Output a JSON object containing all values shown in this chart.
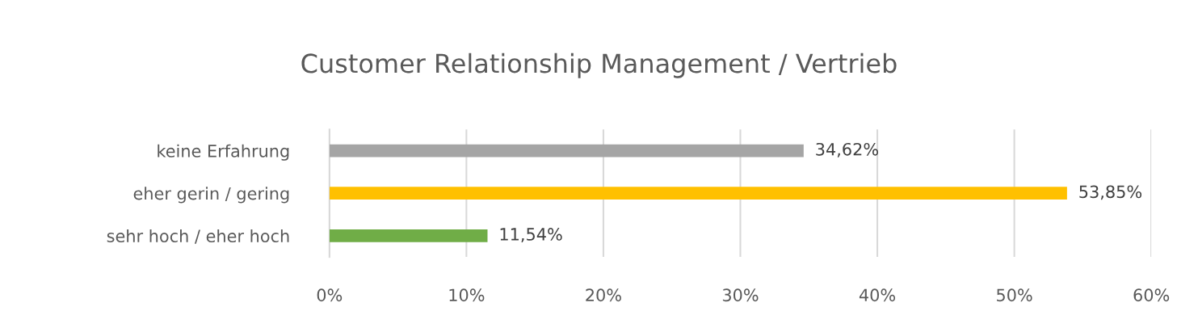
{
  "chart_data": {
    "type": "bar",
    "orientation": "horizontal",
    "title": "Customer Relationship Management / Vertrieb",
    "categories": [
      "keine Erfahrung",
      "eher gerin / gering",
      "sehr hoch / eher hoch"
    ],
    "values": [
      34.62,
      53.85,
      11.54
    ],
    "colors": [
      "#a5a5a5",
      "#ffc000",
      "#70ad47"
    ],
    "value_labels": [
      "34,62%",
      "53,85%",
      "11,54%"
    ],
    "xlim": [
      0,
      60
    ],
    "xticks": [
      {
        "value": 0,
        "label": "0%"
      },
      {
        "value": 10,
        "label": "10%"
      },
      {
        "value": 20,
        "label": "20%"
      },
      {
        "value": 30,
        "label": "30%"
      },
      {
        "value": 40,
        "label": "40%"
      },
      {
        "value": 50,
        "label": "50%"
      },
      {
        "value": 60,
        "label": "60%"
      }
    ],
    "grid": "x",
    "legend": false
  }
}
